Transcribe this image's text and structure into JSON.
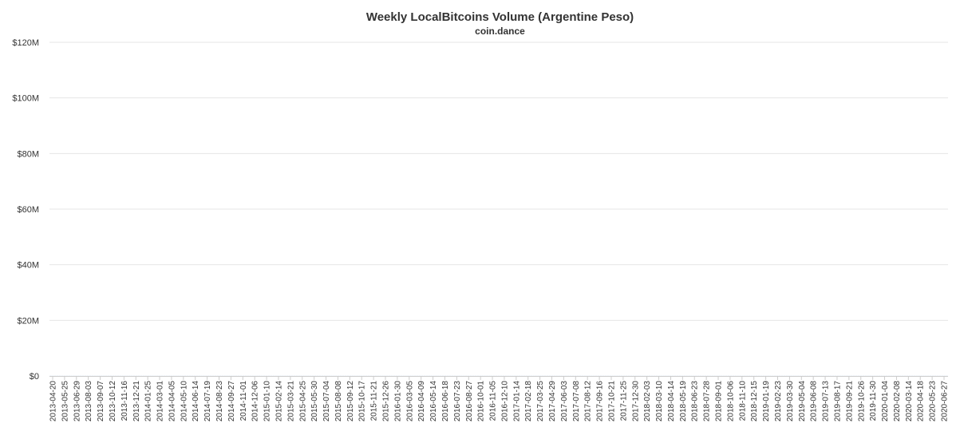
{
  "chart_data": {
    "type": "bar",
    "title": "Weekly LocalBitcoins Volume (Argentine Peso)",
    "subtitle": "coin.dance",
    "ylim": [
      0,
      120000000
    ],
    "y_ticks": [
      "$0",
      "$20M",
      "$40M",
      "$60M",
      "$80M",
      "$100M",
      "$120M"
    ],
    "y_tick_values": [
      0,
      20000000,
      40000000,
      60000000,
      80000000,
      100000000,
      120000000
    ],
    "grid": true,
    "legend": "none",
    "colors": {
      "bar": "#5b9bdf",
      "grid": "#e6e6e6",
      "axis": "#cccccc"
    },
    "x_ticks": [
      "2013-04-20",
      "2013-05-25",
      "2013-06-29",
      "2013-08-03",
      "2013-09-07",
      "2013-10-12",
      "2013-11-16",
      "2013-12-21",
      "2014-01-25",
      "2014-03-01",
      "2014-04-05",
      "2014-05-10",
      "2014-06-14",
      "2014-07-19",
      "2014-08-23",
      "2014-09-27",
      "2014-11-01",
      "2014-12-06",
      "2015-01-10",
      "2015-02-14",
      "2015-03-21",
      "2015-04-25",
      "2015-05-30",
      "2015-07-04",
      "2015-08-08",
      "2015-09-12",
      "2015-10-17",
      "2015-11-21",
      "2015-12-26",
      "2016-01-30",
      "2016-03-05",
      "2016-04-09",
      "2016-05-14",
      "2016-06-18",
      "2016-07-23",
      "2016-08-27",
      "2016-10-01",
      "2016-11-05",
      "2016-12-10",
      "2017-01-14",
      "2017-02-18",
      "2017-03-25",
      "2017-04-29",
      "2017-06-03",
      "2017-07-08",
      "2017-08-12",
      "2017-09-16",
      "2017-10-21",
      "2017-11-25",
      "2017-12-30",
      "2018-02-03",
      "2018-03-10",
      "2018-04-14",
      "2018-05-19",
      "2018-06-23",
      "2018-07-28",
      "2018-09-01",
      "2018-10-06",
      "2018-11-10",
      "2018-12-15",
      "2019-01-19",
      "2019-02-23",
      "2019-03-30",
      "2019-05-04",
      "2019-06-08",
      "2019-07-13",
      "2019-08-17",
      "2019-09-21",
      "2019-10-26",
      "2019-11-30",
      "2020-01-04",
      "2020-02-08",
      "2020-03-14",
      "2020-04-18",
      "2020-05-23",
      "2020-06-27"
    ],
    "values": [
      20000,
      20000,
      20000,
      20000,
      20000,
      20000,
      20000,
      20000,
      20000,
      20000,
      20000,
      20000,
      20000,
      20000,
      20000,
      20000,
      20000,
      20000,
      20000,
      20000,
      20000,
      20000,
      20000,
      20000,
      20000,
      20000,
      20000,
      20000,
      20000,
      20000,
      20000,
      20000,
      20000,
      20000,
      20000,
      20000,
      20000,
      20000,
      20000,
      20000,
      20000,
      20000,
      20000,
      20000,
      20000,
      20000,
      20000,
      20000,
      20000,
      20000,
      20000,
      20000,
      20000,
      20000,
      20000,
      20000,
      20000,
      20000,
      20000,
      20000,
      20000,
      20000,
      20000,
      20000,
      20000,
      20000,
      20000,
      20000,
      20000,
      20000,
      20000,
      20000,
      20000,
      20000,
      20000,
      20000,
      20000,
      20000,
      20000,
      20000,
      20000,
      20000,
      20000,
      20000,
      20000,
      20000,
      20000,
      20000,
      20000,
      20000,
      20000,
      20000,
      20000,
      20000,
      20000,
      20000,
      20000,
      20000,
      20000,
      20000,
      20000,
      20000,
      20000,
      20000,
      20000,
      20000,
      20000,
      20000,
      20000,
      20000,
      20000,
      20000,
      20000,
      20000,
      20000,
      20000,
      20000,
      20000,
      20000,
      20000,
      20000,
      20000,
      20000,
      20000,
      20000,
      20000,
      20000,
      20000,
      20000,
      20000,
      20000,
      20000,
      20000,
      20000,
      20000,
      20000,
      20000,
      20000,
      20000,
      20000,
      20000,
      20000,
      20000,
      20000,
      20000,
      20000,
      20000,
      20000,
      20000,
      20000,
      20000,
      20000,
      20000,
      20000,
      20000,
      20000,
      20000,
      20000,
      20000,
      20000,
      20000,
      20000,
      20000,
      20000,
      20000,
      20000,
      20000,
      20000,
      20000,
      20000,
      20000,
      20000,
      20000,
      20000,
      20000,
      20000,
      20000,
      20000,
      20000,
      20000,
      20000,
      20000,
      20000,
      20000,
      20000,
      20000,
      20000,
      20000,
      20000,
      20000,
      20000,
      20000,
      20000,
      20000,
      20000,
      20000,
      20000,
      20000,
      20000,
      20000,
      20000,
      20000,
      20000,
      20000,
      20000,
      20000,
      20000,
      20000,
      20000,
      20000,
      20000,
      20000,
      20000,
      20000,
      20000,
      20000,
      20000,
      20000,
      20000,
      20000,
      20000,
      20000,
      20000,
      20000,
      20000,
      20000,
      20000,
      20000,
      20000,
      20000,
      20000,
      20000,
      20000,
      20000,
      20000,
      20000,
      20000,
      20000,
      20000,
      20000,
      20000,
      20000,
      20000,
      20000,
      20000,
      20000,
      20000,
      20000,
      20000,
      20000,
      20000,
      20000,
      20000,
      20000,
      20000,
      20000,
      20000,
      20000,
      20000,
      20000,
      20000,
      20000,
      20000,
      20000,
      20000,
      20000,
      20000,
      20000,
      20000,
      20000,
      20000,
      20000,
      20000,
      20000,
      20000,
      20000,
      20000,
      20000,
      20000,
      20000,
      20000,
      20000,
      20000,
      20000,
      20000,
      20000,
      20000,
      20000,
      20000,
      20000,
      20000,
      20000,
      20000,
      20000,
      20000,
      20000,
      20000,
      20000,
      20000,
      20000,
      20000,
      20000,
      20000,
      20000,
      20000,
      20000,
      20000,
      20000,
      20000,
      20000,
      20000,
      20000,
      20000,
      20000,
      20000,
      20000,
      20000,
      20000,
      20000,
      20000,
      20000,
      20000,
      20000,
      20000,
      20000,
      20000,
      20000,
      20000,
      20000,
      20000,
      20000,
      20000,
      20000,
      20000,
      20000,
      20000,
      20000,
      20000,
      20000,
      20000,
      20000,
      20000,
      20000,
      20000,
      20000,
      20000,
      20000,
      20000,
      20000,
      20000,
      20000,
      20000,
      20000,
      20000,
      20000,
      20000,
      20000,
      20000,
      20000,
      20000,
      20000,
      20000,
      20000,
      20000,
      20000,
      20000,
      20000,
      20000,
      20000,
      20000,
      20000,
      20000,
      20000,
      20000,
      20000,
      20000,
      20000,
      20000,
      20000,
      20000,
      20000,
      20000,
      20000,
      20000,
      20000,
      20000,
      20000
    ]
  }
}
